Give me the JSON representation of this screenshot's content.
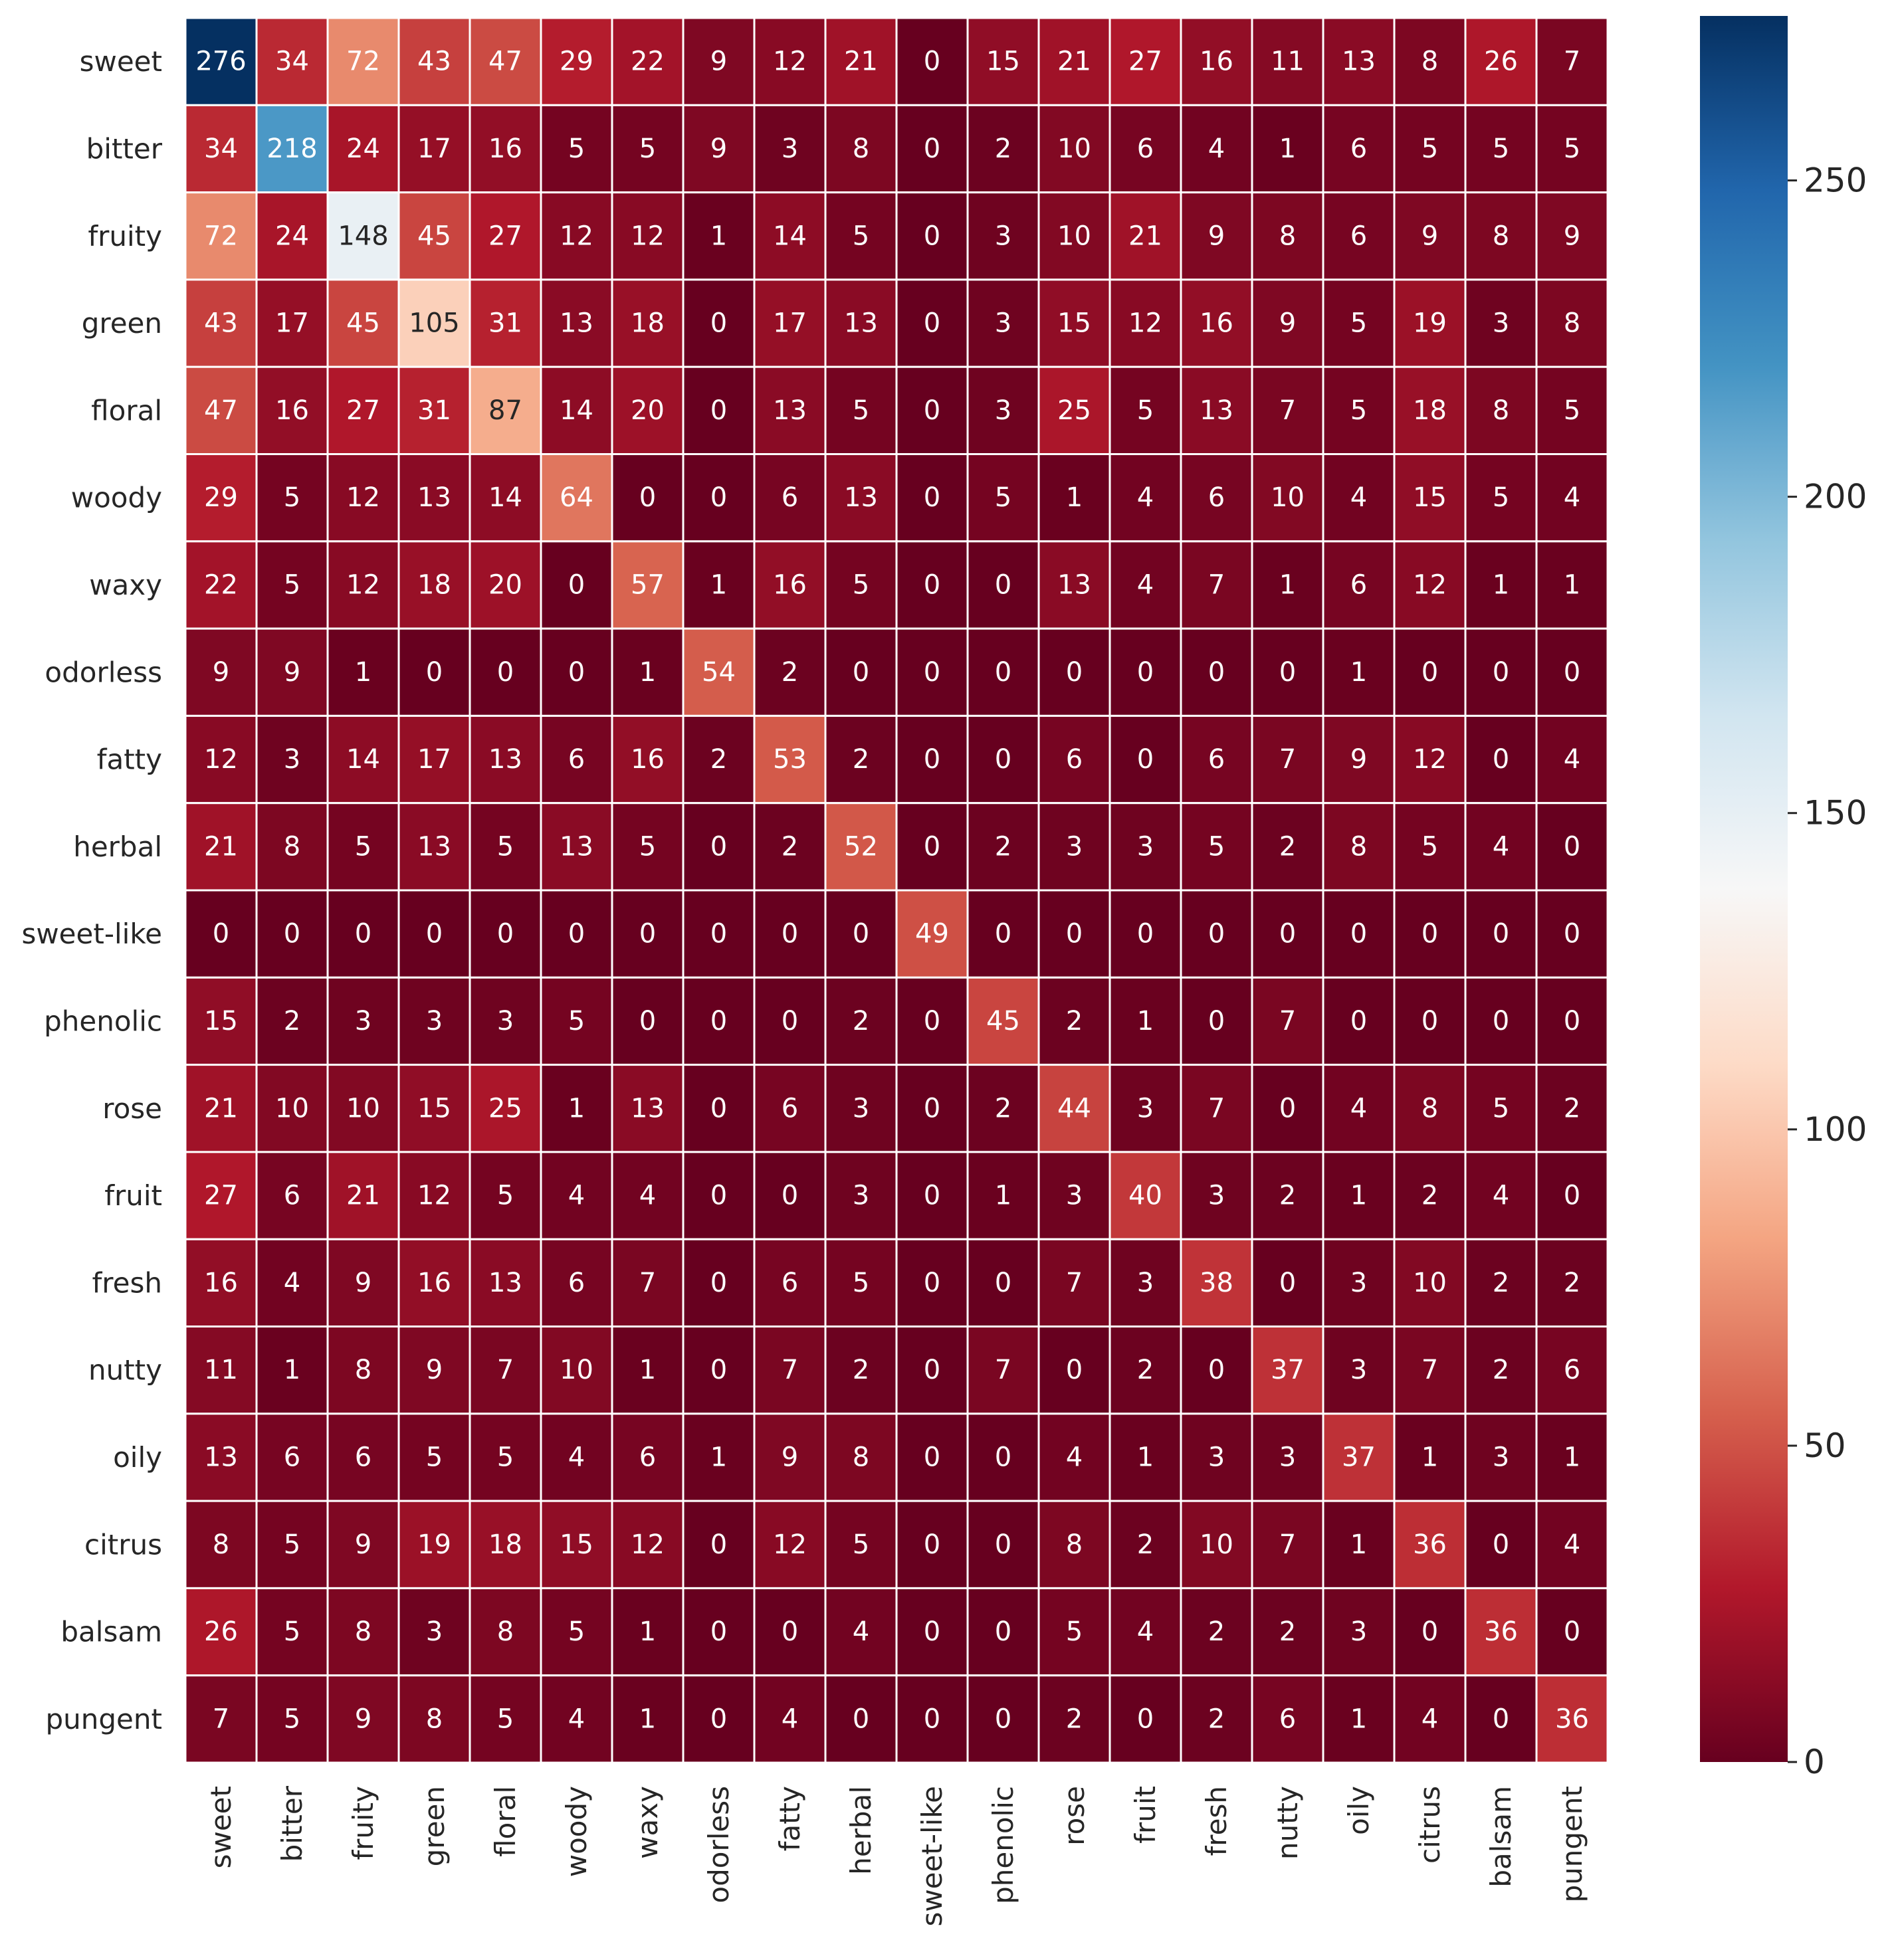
{
  "chart_data": {
    "type": "heatmap",
    "colormap": "RdBu",
    "title": "",
    "xlabel": "",
    "ylabel": "",
    "row_labels": [
      "sweet",
      "bitter",
      "fruity",
      "green",
      "floral",
      "woody",
      "waxy",
      "odorless",
      "fatty",
      "herbal",
      "sweet-like",
      "phenolic",
      "rose",
      "fruit",
      "fresh",
      "nutty",
      "oily",
      "citrus",
      "balsam",
      "pungent"
    ],
    "col_labels": [
      "sweet",
      "bitter",
      "fruity",
      "green",
      "floral",
      "woody",
      "waxy",
      "odorless",
      "fatty",
      "herbal",
      "sweet-like",
      "phenolic",
      "rose",
      "fruit",
      "fresh",
      "nutty",
      "oily",
      "citrus",
      "balsam",
      "pungent"
    ],
    "values": [
      [
        276,
        34,
        72,
        43,
        47,
        29,
        22,
        9,
        12,
        21,
        0,
        15,
        21,
        27,
        16,
        11,
        13,
        8,
        26,
        7
      ],
      [
        34,
        218,
        24,
        17,
        16,
        5,
        5,
        9,
        3,
        8,
        0,
        2,
        10,
        6,
        4,
        1,
        6,
        5,
        5,
        5
      ],
      [
        72,
        24,
        148,
        45,
        27,
        12,
        12,
        1,
        14,
        5,
        0,
        3,
        10,
        21,
        9,
        8,
        6,
        9,
        8,
        9
      ],
      [
        43,
        17,
        45,
        105,
        31,
        13,
        18,
        0,
        17,
        13,
        0,
        3,
        15,
        12,
        16,
        9,
        5,
        19,
        3,
        8
      ],
      [
        47,
        16,
        27,
        31,
        87,
        14,
        20,
        0,
        13,
        5,
        0,
        3,
        25,
        5,
        13,
        7,
        5,
        18,
        8,
        5
      ],
      [
        29,
        5,
        12,
        13,
        14,
        64,
        0,
        0,
        6,
        13,
        0,
        5,
        1,
        4,
        6,
        10,
        4,
        15,
        5,
        4
      ],
      [
        22,
        5,
        12,
        18,
        20,
        0,
        57,
        1,
        16,
        5,
        0,
        0,
        13,
        4,
        7,
        1,
        6,
        12,
        1,
        1
      ],
      [
        9,
        9,
        1,
        0,
        0,
        0,
        1,
        54,
        2,
        0,
        0,
        0,
        0,
        0,
        0,
        0,
        1,
        0,
        0,
        0
      ],
      [
        12,
        3,
        14,
        17,
        13,
        6,
        16,
        2,
        53,
        2,
        0,
        0,
        6,
        0,
        6,
        7,
        9,
        12,
        0,
        4
      ],
      [
        21,
        8,
        5,
        13,
        5,
        13,
        5,
        0,
        2,
        52,
        0,
        2,
        3,
        3,
        5,
        2,
        8,
        5,
        4,
        0
      ],
      [
        0,
        0,
        0,
        0,
        0,
        0,
        0,
        0,
        0,
        0,
        49,
        0,
        0,
        0,
        0,
        0,
        0,
        0,
        0,
        0
      ],
      [
        15,
        2,
        3,
        3,
        3,
        5,
        0,
        0,
        0,
        2,
        0,
        45,
        2,
        1,
        0,
        7,
        0,
        0,
        0,
        0
      ],
      [
        21,
        10,
        10,
        15,
        25,
        1,
        13,
        0,
        6,
        3,
        0,
        2,
        44,
        3,
        7,
        0,
        4,
        8,
        5,
        2
      ],
      [
        27,
        6,
        21,
        12,
        5,
        4,
        4,
        0,
        0,
        3,
        0,
        1,
        3,
        40,
        3,
        2,
        1,
        2,
        4,
        0
      ],
      [
        16,
        4,
        9,
        16,
        13,
        6,
        7,
        0,
        6,
        5,
        0,
        0,
        7,
        3,
        38,
        0,
        3,
        10,
        2,
        2
      ],
      [
        11,
        1,
        8,
        9,
        7,
        10,
        1,
        0,
        7,
        2,
        0,
        7,
        0,
        2,
        0,
        37,
        3,
        7,
        2,
        6
      ],
      [
        13,
        6,
        6,
        5,
        5,
        4,
        6,
        1,
        9,
        8,
        0,
        0,
        4,
        1,
        3,
        3,
        37,
        1,
        3,
        1
      ],
      [
        8,
        5,
        9,
        19,
        18,
        15,
        12,
        0,
        12,
        5,
        0,
        0,
        8,
        2,
        10,
        7,
        1,
        36,
        0,
        4
      ],
      [
        26,
        5,
        8,
        3,
        8,
        5,
        1,
        0,
        0,
        4,
        0,
        0,
        5,
        4,
        2,
        2,
        3,
        0,
        36,
        0
      ],
      [
        7,
        5,
        9,
        8,
        5,
        4,
        1,
        0,
        4,
        0,
        0,
        0,
        2,
        0,
        2,
        6,
        1,
        4,
        0,
        36
      ]
    ],
    "vmin": 0,
    "vmax": 276,
    "colorbar": {
      "ticks": [
        0,
        50,
        100,
        150,
        200,
        250
      ],
      "location": "right"
    },
    "annotations": true,
    "grid": false
  }
}
